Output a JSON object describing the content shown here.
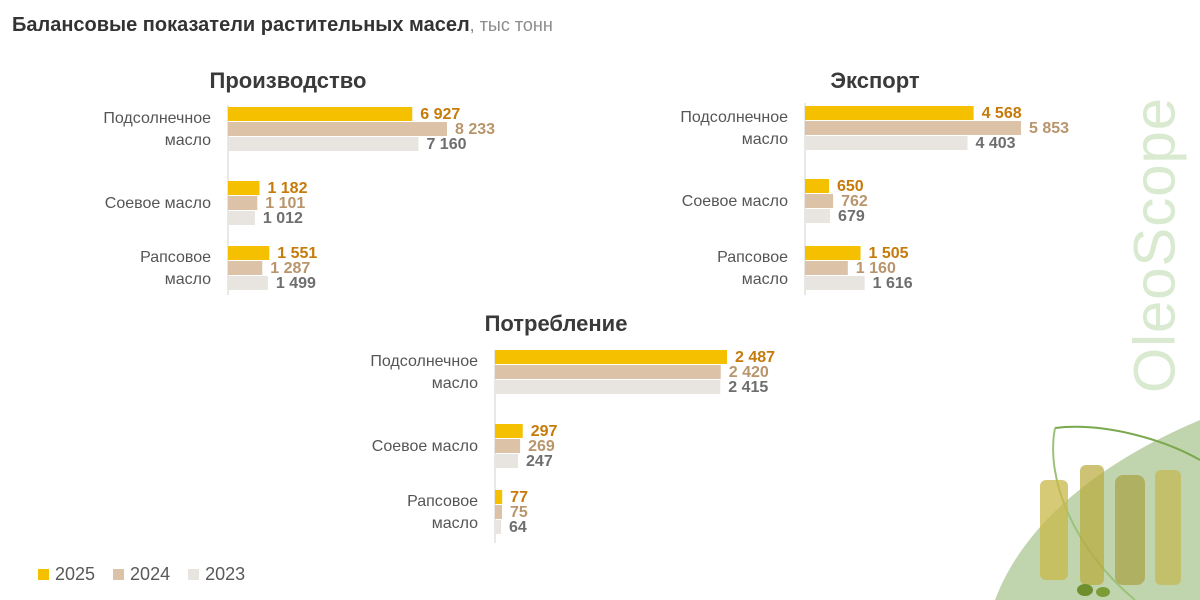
{
  "page": {
    "title": "Балансовые показатели растительных масел",
    "title_unit": ", тыс тонн",
    "brand": "OleoScope"
  },
  "colors": {
    "y2025": "#f5c000",
    "y2024": "#dcc2a6",
    "y2023": "#e8e4e0",
    "label2025": "#c67a0a",
    "label2024": "#b8956c",
    "label2023": "#6e6e6e",
    "axis": "#d0d0d0"
  },
  "legend": [
    {
      "label": "2025",
      "color": "#f5c000"
    },
    {
      "label": "2024",
      "color": "#dcc2a6"
    },
    {
      "label": "2023",
      "color": "#e8e4e0"
    }
  ],
  "chart_data": [
    {
      "type": "bar",
      "orientation": "horizontal",
      "title": "Производство",
      "categories": [
        [
          "Подсолнечное",
          "масло"
        ],
        [
          "Соевое масло"
        ],
        [
          "Рапсовое",
          "масло"
        ]
      ],
      "series": [
        {
          "name": "2025",
          "values": [
            6927,
            1182,
            1551
          ],
          "labels": [
            "6 927",
            "1 182",
            "1 551"
          ]
        },
        {
          "name": "2024",
          "values": [
            8233,
            1101,
            1287
          ],
          "labels": [
            "8 233",
            "1 101",
            "1 287"
          ]
        },
        {
          "name": "2023",
          "values": [
            7160,
            1012,
            1499
          ],
          "labels": [
            "7 160",
            "1 012",
            "1 499"
          ]
        }
      ],
      "xlim": [
        0,
        8233
      ]
    },
    {
      "type": "bar",
      "orientation": "horizontal",
      "title": "Экспорт",
      "categories": [
        [
          "Подсолнечное",
          "масло"
        ],
        [
          "Соевое масло"
        ],
        [
          "Рапсовое",
          "масло"
        ]
      ],
      "series": [
        {
          "name": "2025",
          "values": [
            4568,
            650,
            1505
          ],
          "labels": [
            "4 568",
            "650",
            "1 505"
          ]
        },
        {
          "name": "2024",
          "values": [
            5853,
            762,
            1160
          ],
          "labels": [
            "5 853",
            "762",
            "1 160"
          ]
        },
        {
          "name": "2023",
          "values": [
            4403,
            679,
            1616
          ],
          "labels": [
            "4 403",
            "679",
            "1 616"
          ]
        }
      ],
      "xlim": [
        0,
        5853
      ]
    },
    {
      "type": "bar",
      "orientation": "horizontal",
      "title": "Потребление",
      "categories": [
        [
          "Подсолнечное",
          "масло"
        ],
        [
          "Соевое масло"
        ],
        [
          "Рапсовое",
          "масло"
        ]
      ],
      "series": [
        {
          "name": "2025",
          "values": [
            2487,
            297,
            77
          ],
          "labels": [
            "2 487",
            "297",
            "77"
          ]
        },
        {
          "name": "2024",
          "values": [
            2420,
            269,
            75
          ],
          "labels": [
            "2 420",
            "269",
            "75"
          ]
        },
        {
          "name": "2023",
          "values": [
            2415,
            247,
            64
          ],
          "labels": [
            "2 415",
            "247",
            "64"
          ]
        }
      ],
      "xlim": [
        0,
        2487
      ]
    }
  ]
}
